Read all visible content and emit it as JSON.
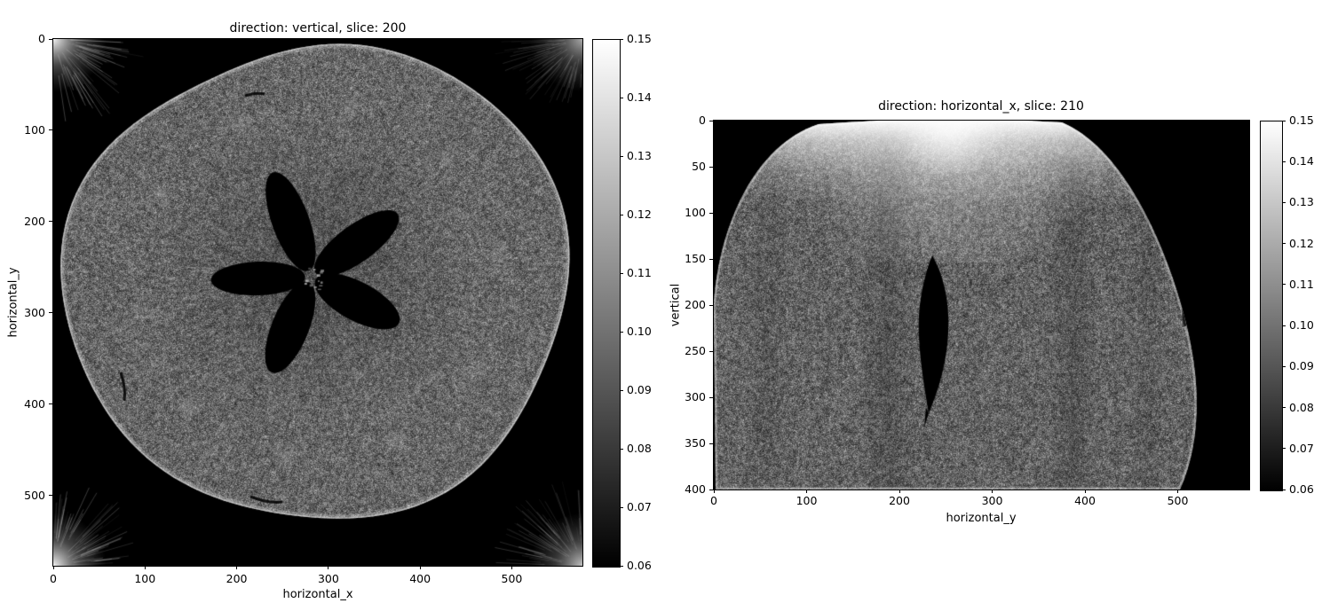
{
  "figure": {
    "background_color": "#ffffff",
    "description": "Matplotlib figure with two grayscale CT slice images of an apple, each with its own grayscale colorbar"
  },
  "chart_data": [
    {
      "type": "heatmap",
      "title": "direction: vertical, slice: 200",
      "xlabel": "horizontal_x",
      "ylabel": "horizontal_y",
      "x_tick_labels": [
        "0",
        "100",
        "200",
        "300",
        "400",
        "500"
      ],
      "x_tick_values": [
        0,
        100,
        200,
        300,
        400,
        500
      ],
      "y_tick_labels": [
        "0",
        "100",
        "200",
        "300",
        "400",
        "500"
      ],
      "y_tick_values": [
        0,
        100,
        200,
        300,
        400,
        500
      ],
      "x_range": [
        0,
        577
      ],
      "y_range": [
        0,
        577
      ],
      "y_origin": "upper",
      "colormap": "gray",
      "value_min": 0.06,
      "value_max": 0.15,
      "colorbar_tick_labels": [
        "0.15",
        "0.14",
        "0.13",
        "0.12",
        "0.11",
        "0.10",
        "0.09",
        "0.08",
        "0.07",
        "0.06"
      ],
      "content_description": "Axial CT slice: roughly circular speckled grey apple cross-section on black background, thin bright rim, dark five-lobed star-shaped core cavity at centre, faint concentric ring artefacts below centre, bright fan-shaped reconstruction artefacts in all four image corners"
    },
    {
      "type": "heatmap",
      "title": "direction: horizontal_x, slice: 210",
      "xlabel": "horizontal_y",
      "ylabel": "vertical",
      "x_tick_labels": [
        "0",
        "100",
        "200",
        "300",
        "400",
        "500"
      ],
      "x_tick_values": [
        0,
        100,
        200,
        300,
        400,
        500
      ],
      "y_tick_labels": [
        "0",
        "50",
        "100",
        "150",
        "200",
        "250",
        "300",
        "350",
        "400"
      ],
      "y_tick_values": [
        0,
        50,
        100,
        150,
        200,
        250,
        300,
        350,
        400
      ],
      "x_range": [
        0,
        577
      ],
      "y_range": [
        0,
        400
      ],
      "y_origin": "upper",
      "colormap": "gray",
      "value_min": 0.06,
      "value_max": 0.15,
      "colorbar_tick_labels": [
        "0.15",
        "0.14",
        "0.13",
        "0.12",
        "0.11",
        "0.10",
        "0.09",
        "0.08",
        "0.07",
        "0.06"
      ],
      "content_description": "Vertical CT slice: dome-shaped speckled grey apple cross-section, bright white band along the top of the dome, dark lens-shaped core cavity slightly left of centre, faint darker vertical band artefacts, black background in upper corners and along the curved right side"
    }
  ]
}
